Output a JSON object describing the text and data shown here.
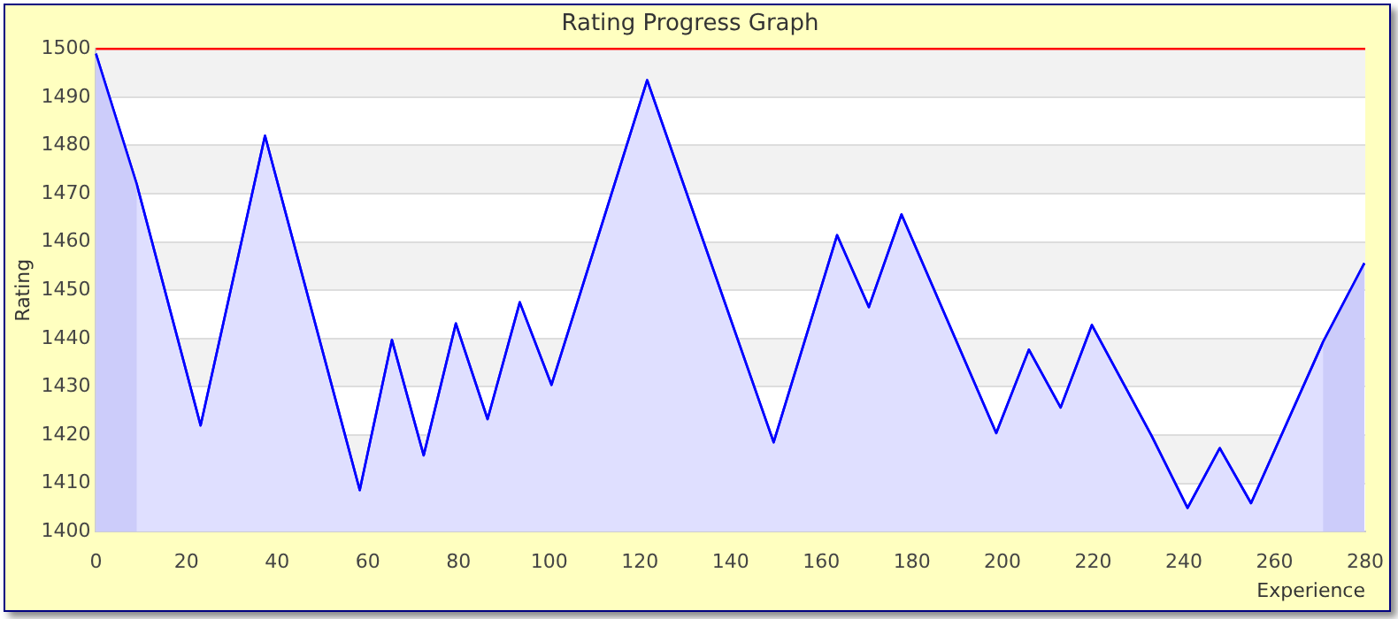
{
  "chart_data": {
    "type": "area",
    "title": "Rating Progress Graph",
    "xlabel": "Experience",
    "ylabel": "Rating",
    "x": [
      0,
      9,
      23.1,
      37.3,
      58.2,
      65.3,
      72.3,
      79.4,
      86.4,
      93.5,
      100.5,
      121.6,
      149.5,
      163.5,
      170.5,
      177.7,
      198.6,
      205.8,
      212.8,
      219.7,
      232.9,
      240.8,
      247.9,
      254.8,
      270.7,
      279.8
    ],
    "series": [
      {
        "color": "#0000ff",
        "values": [
          1499,
          1472,
          1422,
          1482,
          1408.6,
          1439.7,
          1415.8,
          1443.1,
          1423.3,
          1447.5,
          1430.4,
          1493.5,
          1418.5,
          1461.4,
          1446.5,
          1465.7,
          1420.4,
          1437.7,
          1425.7,
          1442.8,
          1419.8,
          1404.9,
          1417.3,
          1405.9,
          1439.3,
          1455.6
        ]
      }
    ],
    "xlim": [
      0,
      280
    ],
    "xticks": [
      0,
      20,
      40,
      60,
      80,
      100,
      120,
      140,
      160,
      180,
      200,
      220,
      240,
      260,
      280
    ],
    "ylim": [
      1400,
      1500
    ],
    "yticks": [
      1400,
      1410,
      1420,
      1430,
      1440,
      1450,
      1460,
      1470,
      1480,
      1490,
      1500
    ],
    "grid": "y",
    "legend": false,
    "ref_lines": [
      {
        "axis": "y",
        "value": 1500,
        "color": "#ff0000"
      }
    ],
    "bands": [
      {
        "axis": "x",
        "from": 0,
        "to": 9,
        "color": "#ccccfa"
      },
      {
        "axis": "x",
        "from": 270.7,
        "to": 279.8,
        "color": "#ccccfa"
      }
    ]
  }
}
